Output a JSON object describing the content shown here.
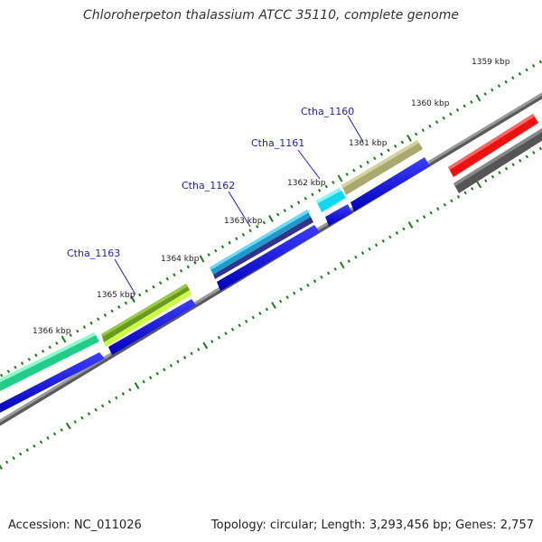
{
  "title": "Chloroherpeton thalassium ATCC 35110, complete genome",
  "footer": {
    "accession": "Accession: NC_011026",
    "summary": "Topology: circular; Length: 3,293,456 bp; Genes: 2,757"
  },
  "ticks": [
    "1359 kbp",
    "1360 kbp",
    "1361 kbp",
    "1362 kbp",
    "1363 kbp",
    "1364 kbp",
    "1365 kbp",
    "1366 kbp"
  ],
  "gene_labels": [
    "Ctha_1160",
    "Ctha_1161",
    "Ctha_1162",
    "Ctha_1163"
  ],
  "colors": {
    "tick": "#1e7a1e",
    "backbone": "#8c8c8c",
    "blue": "#1010e0",
    "red": "#ee1111",
    "darkgray": "#555555",
    "olive": "#b0b070",
    "cyan": "#22e0f0",
    "skyblue": "#33bbee",
    "navy": "#3a3a90",
    "lime": "#66aa22",
    "mint": "#33ee99"
  }
}
